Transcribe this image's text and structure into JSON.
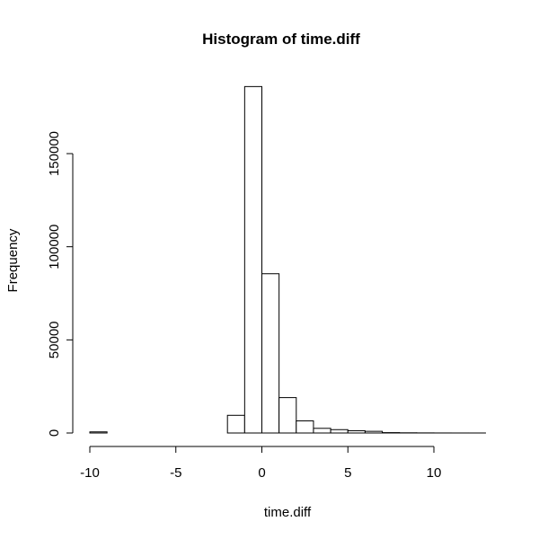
{
  "chart_data": {
    "type": "bar",
    "title": "Histogram of time.diff",
    "xlabel": "time.diff",
    "ylabel": "Frequency",
    "xlim": [
      -10,
      13
    ],
    "ylim": [
      0,
      190000
    ],
    "x_ticks": [
      {
        "value": -10,
        "label": "-10"
      },
      {
        "value": -5,
        "label": "-5"
      },
      {
        "value": 0,
        "label": "0"
      },
      {
        "value": 5,
        "label": "5"
      },
      {
        "value": 10,
        "label": "10"
      }
    ],
    "y_ticks": [
      {
        "value": 0,
        "label": "0"
      },
      {
        "value": 50000,
        "label": "50000"
      },
      {
        "value": 100000,
        "label": "100000"
      },
      {
        "value": 150000,
        "label": "150000"
      }
    ],
    "bin_width": 1,
    "bins": [
      {
        "start": -10,
        "count": 600
      },
      {
        "start": -9,
        "count": 0
      },
      {
        "start": -8,
        "count": 0
      },
      {
        "start": -7,
        "count": 0
      },
      {
        "start": -6,
        "count": 0
      },
      {
        "start": -5,
        "count": 0
      },
      {
        "start": -4,
        "count": 0
      },
      {
        "start": -3,
        "count": 0
      },
      {
        "start": -2,
        "count": 9500
      },
      {
        "start": -1,
        "count": 186000
      },
      {
        "start": 0,
        "count": 85500
      },
      {
        "start": 1,
        "count": 19000
      },
      {
        "start": 2,
        "count": 6500
      },
      {
        "start": 3,
        "count": 2500
      },
      {
        "start": 4,
        "count": 1800
      },
      {
        "start": 5,
        "count": 1200
      },
      {
        "start": 6,
        "count": 900
      },
      {
        "start": 7,
        "count": 200
      },
      {
        "start": 8,
        "count": 100
      },
      {
        "start": 9,
        "count": 50
      },
      {
        "start": 10,
        "count": 20
      },
      {
        "start": 11,
        "count": 10
      },
      {
        "start": 12,
        "count": 5
      }
    ],
    "grid": false,
    "legend": "none"
  }
}
